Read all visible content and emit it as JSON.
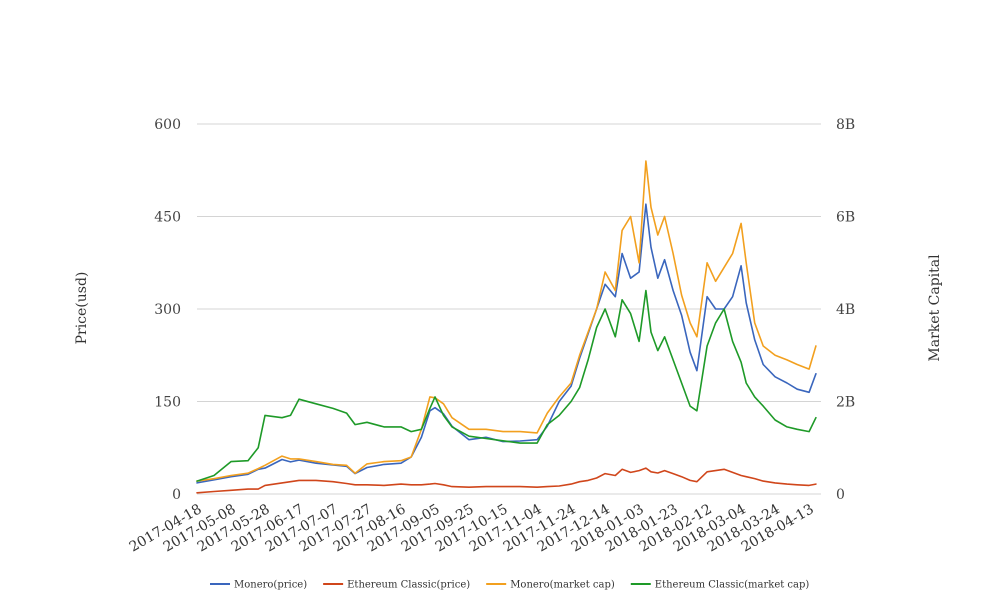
{
  "chart_data": {
    "type": "line",
    "title": "",
    "ylabel_left": "Price(usd)",
    "ylabel_right": "Market Capital",
    "xlim": [
      "2017-04-18",
      "2018-04-20"
    ],
    "ylim_left": [
      0,
      600
    ],
    "ylim_right": [
      0,
      8000000000
    ],
    "yticks_left": [
      "0",
      "150",
      "300",
      "450",
      "600"
    ],
    "yticks_right": [
      "0",
      "2B",
      "4B",
      "6B",
      "8B"
    ],
    "xticks": [
      "2017-04-18",
      "2017-05-08",
      "2017-05-28",
      "2017-06-17",
      "2017-07-07",
      "2017-07-27",
      "2017-08-16",
      "2017-09-05",
      "2017-09-25",
      "2017-10-15",
      "2017-11-04",
      "2017-11-24",
      "2017-12-14",
      "2018-01-03",
      "2018-01-23",
      "2018-02-12",
      "2018-03-04",
      "2018-03-24",
      "2018-04-13"
    ],
    "grid": true,
    "legend_position": "bottom",
    "x": [
      "2017-04-18",
      "2017-04-28",
      "2017-05-08",
      "2017-05-18",
      "2017-05-24",
      "2017-05-28",
      "2017-06-07",
      "2017-06-12",
      "2017-06-17",
      "2017-06-27",
      "2017-07-07",
      "2017-07-15",
      "2017-07-20",
      "2017-07-27",
      "2017-08-06",
      "2017-08-16",
      "2017-08-22",
      "2017-08-28",
      "2017-09-02",
      "2017-09-05",
      "2017-09-10",
      "2017-09-15",
      "2017-09-25",
      "2017-10-05",
      "2017-10-15",
      "2017-10-25",
      "2017-11-04",
      "2017-11-10",
      "2017-11-17",
      "2017-11-24",
      "2017-11-29",
      "2017-12-04",
      "2017-12-09",
      "2017-12-14",
      "2017-12-20",
      "2017-12-24",
      "2017-12-29",
      "2018-01-03",
      "2018-01-07",
      "2018-01-10",
      "2018-01-14",
      "2018-01-18",
      "2018-01-23",
      "2018-01-28",
      "2018-02-02",
      "2018-02-06",
      "2018-02-12",
      "2018-02-17",
      "2018-02-22",
      "2018-02-27",
      "2018-03-04",
      "2018-03-07",
      "2018-03-12",
      "2018-03-17",
      "2018-03-24",
      "2018-03-31",
      "2018-04-06",
      "2018-04-13",
      "2018-04-17"
    ],
    "series": [
      {
        "name": "Monero(price)",
        "axis": "left",
        "color": "#3a66bd",
        "values": [
          18,
          23,
          28,
          32,
          40,
          42,
          56,
          52,
          55,
          50,
          47,
          45,
          33,
          43,
          48,
          50,
          60,
          92,
          135,
          140,
          130,
          110,
          88,
          92,
          85,
          86,
          88,
          110,
          150,
          175,
          220,
          260,
          300,
          340,
          320,
          390,
          350,
          360,
          470,
          400,
          350,
          380,
          330,
          290,
          230,
          200,
          320,
          300,
          300,
          320,
          370,
          310,
          250,
          210,
          190,
          180,
          170,
          165,
          195
        ]
      },
      {
        "name": "Ethereum Classic(price)",
        "axis": "left",
        "color": "#d0461b",
        "values": [
          2,
          4,
          6,
          8,
          8,
          14,
          18,
          20,
          22,
          22,
          20,
          17,
          15,
          15,
          14,
          16,
          15,
          15,
          16,
          17,
          15,
          12,
          11,
          12,
          12,
          12,
          11,
          12,
          13,
          16,
          20,
          22,
          26,
          33,
          30,
          40,
          35,
          38,
          42,
          36,
          34,
          38,
          33,
          28,
          22,
          20,
          36,
          38,
          40,
          35,
          30,
          28,
          25,
          21,
          18,
          16,
          15,
          14,
          16
        ]
      },
      {
        "name": "Monero(market cap)",
        "axis": "right",
        "color": "#f2a01f",
        "values": [
          280000000,
          330000000,
          400000000,
          450000000,
          550000000,
          620000000,
          820000000,
          760000000,
          760000000,
          700000000,
          640000000,
          620000000,
          450000000,
          650000000,
          700000000,
          720000000,
          800000000,
          1400000000,
          2100000000,
          2080000000,
          1950000000,
          1650000000,
          1400000000,
          1400000000,
          1350000000,
          1350000000,
          1320000000,
          1750000000,
          2100000000,
          2400000000,
          3000000000,
          3500000000,
          4000000000,
          4800000000,
          4400000000,
          5700000000,
          6000000000,
          5000000000,
          7200000000,
          6200000000,
          5600000000,
          6000000000,
          5200000000,
          4300000000,
          3700000000,
          3400000000,
          5000000000,
          4600000000,
          4900000000,
          5200000000,
          5850000000,
          5000000000,
          3700000000,
          3200000000,
          3000000000,
          2900000000,
          2800000000,
          2700000000,
          3200000000
        ]
      },
      {
        "name": "Ethereum Classic(market cap)",
        "axis": "right",
        "color": "#1e9a28",
        "values": [
          280000000,
          400000000,
          700000000,
          720000000,
          1000000000,
          1700000000,
          1650000000,
          1700000000,
          2050000000,
          1950000000,
          1850000000,
          1750000000,
          1500000000,
          1550000000,
          1450000000,
          1450000000,
          1350000000,
          1400000000,
          1850000000,
          2100000000,
          1700000000,
          1450000000,
          1250000000,
          1200000000,
          1150000000,
          1100000000,
          1100000000,
          1500000000,
          1700000000,
          2000000000,
          2300000000,
          2900000000,
          3600000000,
          4000000000,
          3400000000,
          4200000000,
          3900000000,
          3300000000,
          4400000000,
          3500000000,
          3100000000,
          3400000000,
          2900000000,
          2400000000,
          1900000000,
          1800000000,
          3200000000,
          3700000000,
          4000000000,
          3300000000,
          2850000000,
          2400000000,
          2100000000,
          1900000000,
          1600000000,
          1450000000,
          1400000000,
          1350000000,
          1650000000
        ]
      }
    ]
  }
}
